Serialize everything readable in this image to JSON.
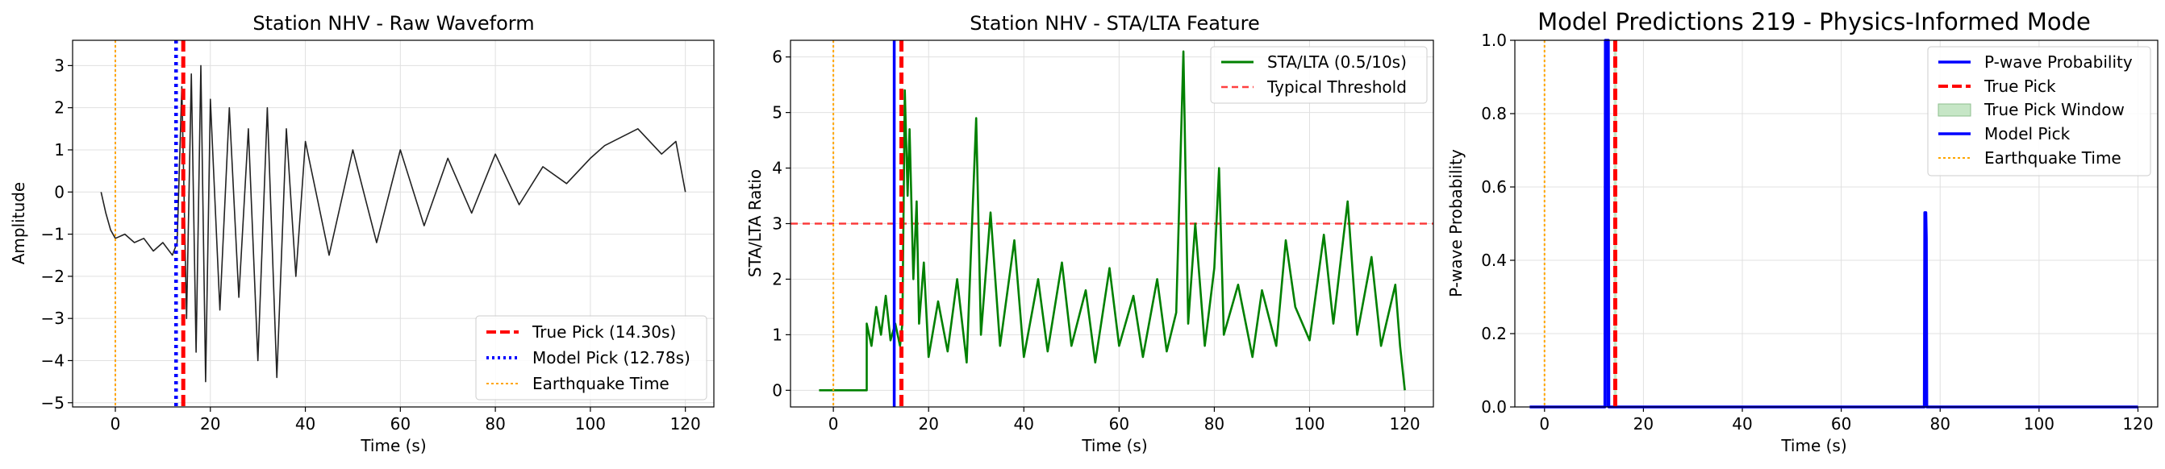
{
  "chart_data": [
    {
      "type": "line",
      "title": "Station NHV - Raw Waveform",
      "xlabel": "Time (s)",
      "ylabel": "Amplitude",
      "xlim": [
        -9,
        126
      ],
      "ylim": [
        -5.1,
        3.6
      ],
      "xticks": [
        0,
        20,
        40,
        60,
        80,
        100,
        120
      ],
      "yticks": [
        -5,
        -4,
        -3,
        -2,
        -1,
        0,
        1,
        2,
        3
      ],
      "grid": true,
      "legend_position": "lower-right",
      "colors": {
        "waveform": "#222222",
        "true_pick": "#ff0000",
        "model_pick": "#0000ff",
        "earthquake": "#ffa500"
      },
      "waveform": {
        "x_start": -3,
        "x_end": 120,
        "points": [
          [
            -3,
            0
          ],
          [
            -2,
            -0.5
          ],
          [
            -1,
            -0.9
          ],
          [
            0,
            -1.1
          ],
          [
            2,
            -1.0
          ],
          [
            4,
            -1.2
          ],
          [
            6,
            -1.1
          ],
          [
            8,
            -1.4
          ],
          [
            10,
            -1.2
          ],
          [
            12,
            -1.5
          ],
          [
            13,
            -1.2
          ],
          [
            14,
            2.5
          ],
          [
            15,
            -3
          ],
          [
            16,
            2.8
          ],
          [
            17,
            -3.8
          ],
          [
            18,
            3.0
          ],
          [
            19,
            -4.5
          ],
          [
            20,
            2.2
          ],
          [
            22,
            -2.8
          ],
          [
            24,
            2.0
          ],
          [
            26,
            -2.5
          ],
          [
            28,
            1.5
          ],
          [
            30,
            -4.0
          ],
          [
            32,
            2.0
          ],
          [
            34,
            -4.4
          ],
          [
            36,
            1.5
          ],
          [
            38,
            -2.0
          ],
          [
            40,
            1.2
          ],
          [
            45,
            -1.5
          ],
          [
            50,
            1.0
          ],
          [
            55,
            -1.2
          ],
          [
            60,
            1.0
          ],
          [
            65,
            -0.8
          ],
          [
            70,
            0.8
          ],
          [
            75,
            -0.5
          ],
          [
            80,
            0.9
          ],
          [
            85,
            -0.3
          ],
          [
            90,
            0.6
          ],
          [
            95,
            0.2
          ],
          [
            100,
            0.8
          ],
          [
            103,
            1.1
          ],
          [
            110,
            1.5
          ],
          [
            115,
            0.9
          ],
          [
            118,
            1.2
          ],
          [
            120,
            0
          ]
        ]
      },
      "vlines": [
        {
          "name": "True Pick (14.30s)",
          "x": 14.3,
          "style": "dashed"
        },
        {
          "name": "Model Pick (12.78s)",
          "x": 12.78,
          "style": "dotted"
        },
        {
          "name": "Earthquake Time",
          "x": 0,
          "style": "dotted-thin"
        }
      ]
    },
    {
      "type": "line",
      "title": "Station NHV - STA/LTA Feature",
      "xlabel": "Time (s)",
      "ylabel": "STA/LTA Ratio",
      "xlim": [
        -9,
        126
      ],
      "ylim": [
        -0.3,
        6.3
      ],
      "xticks": [
        0,
        20,
        40,
        60,
        80,
        100,
        120
      ],
      "yticks": [
        0,
        1,
        2,
        3,
        4,
        5,
        6
      ],
      "grid": true,
      "legend_position": "top-right",
      "colors": {
        "stalta": "#008000",
        "threshold": "#ff0000",
        "true_pick": "#ff0000",
        "model_pick": "#0000ff",
        "earthquake": "#ffa500"
      },
      "series": [
        {
          "name": "STA/LTA (0.5/10s)",
          "points": [
            [
              -3,
              0
            ],
            [
              7,
              0
            ],
            [
              7,
              1.2
            ],
            [
              8,
              0.8
            ],
            [
              9,
              1.5
            ],
            [
              10,
              1.0
            ],
            [
              11,
              1.7
            ],
            [
              12,
              0.9
            ],
            [
              13,
              1.2
            ],
            [
              14,
              0.8
            ],
            [
              14.5,
              1.2
            ],
            [
              15,
              5.4
            ],
            [
              15.6,
              3.5
            ],
            [
              16,
              4.7
            ],
            [
              16.8,
              2.0
            ],
            [
              17.5,
              3.4
            ],
            [
              18,
              1.2
            ],
            [
              19,
              2.3
            ],
            [
              20,
              0.6
            ],
            [
              22,
              1.6
            ],
            [
              24,
              0.7
            ],
            [
              26,
              2.0
            ],
            [
              28,
              0.5
            ],
            [
              30,
              4.9
            ],
            [
              31,
              1.0
            ],
            [
              33,
              3.2
            ],
            [
              35,
              0.8
            ],
            [
              38,
              2.7
            ],
            [
              40,
              0.6
            ],
            [
              43,
              2.0
            ],
            [
              45,
              0.7
            ],
            [
              48,
              2.3
            ],
            [
              50,
              0.8
            ],
            [
              53,
              1.8
            ],
            [
              55,
              0.5
            ],
            [
              58,
              2.2
            ],
            [
              60,
              0.8
            ],
            [
              63,
              1.7
            ],
            [
              65,
              0.6
            ],
            [
              68,
              2.0
            ],
            [
              70,
              0.7
            ],
            [
              72,
              1.4
            ],
            [
              73.5,
              6.1
            ],
            [
              74.5,
              1.2
            ],
            [
              76,
              3.0
            ],
            [
              78,
              0.8
            ],
            [
              80,
              2.2
            ],
            [
              81,
              4.0
            ],
            [
              82,
              1.0
            ],
            [
              85,
              1.9
            ],
            [
              88,
              0.6
            ],
            [
              90,
              1.8
            ],
            [
              93,
              0.8
            ],
            [
              95,
              2.7
            ],
            [
              97,
              1.5
            ],
            [
              100,
              0.9
            ],
            [
              103,
              2.8
            ],
            [
              105,
              1.2
            ],
            [
              108,
              3.4
            ],
            [
              110,
              1.0
            ],
            [
              113,
              2.4
            ],
            [
              115,
              0.8
            ],
            [
              118,
              1.9
            ],
            [
              119,
              0.8
            ],
            [
              120,
              0
            ]
          ]
        }
      ],
      "hlines": [
        {
          "name": "Typical Threshold",
          "y": 3
        }
      ],
      "vlines": [
        {
          "name": "True Pick",
          "x": 14.3,
          "style": "dashed"
        },
        {
          "name": "Model Pick",
          "x": 12.78,
          "style": "solid"
        },
        {
          "name": "Earthquake Time",
          "x": 0,
          "style": "dotted-thin"
        }
      ]
    },
    {
      "type": "line",
      "title": "Model Predictions 219 - Physics-Informed Mode",
      "xlabel": "Time (s)",
      "ylabel": "P-wave Probability",
      "xlim": [
        -6,
        124
      ],
      "ylim": [
        0,
        1
      ],
      "xticks": [
        0,
        20,
        40,
        60,
        80,
        100,
        120
      ],
      "yticks": [
        0.0,
        0.2,
        0.4,
        0.6,
        0.8,
        1.0
      ],
      "grid": true,
      "legend_position": "top-right",
      "colors": {
        "probability": "#0000ff",
        "true_pick": "#ff0000",
        "window": "#c6e6c6",
        "model_pick": "#0000ff",
        "earthquake": "#ffa500"
      },
      "series": [
        {
          "name": "P-wave Probability",
          "points": [
            [
              -3,
              0
            ],
            [
              12.2,
              0
            ],
            [
              12.3,
              1
            ],
            [
              12.9,
              1
            ],
            [
              13,
              0
            ],
            [
              76.8,
              0
            ],
            [
              76.9,
              0.53
            ],
            [
              77.1,
              0.53
            ],
            [
              77.2,
              0.46
            ],
            [
              77.3,
              0
            ],
            [
              120,
              0
            ]
          ]
        }
      ],
      "window": {
        "name": "True Pick Window",
        "x0": 14.0,
        "x1": 14.6
      },
      "vlines": [
        {
          "name": "True Pick",
          "x": 14.3,
          "style": "dashed"
        },
        {
          "name": "Model Pick",
          "x": 12.78,
          "style": "solid"
        },
        {
          "name": "Earthquake Time",
          "x": 0,
          "style": "dotted-thin"
        }
      ]
    }
  ]
}
